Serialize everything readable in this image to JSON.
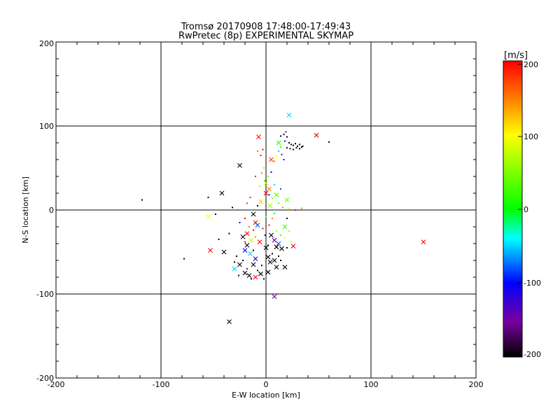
{
  "chart_data": {
    "type": "scatter",
    "title": "Tromsø 20170908 17:48:00-17:49:43",
    "subtitle": "RwPretec (8p) EXPERIMENTAL SKYMAP",
    "xlabel": "E-W location [km]",
    "ylabel": "N-S location [km]",
    "xlim": [
      -200,
      200
    ],
    "ylim": [
      -200,
      200
    ],
    "x_ticks": [
      "-200",
      "-100",
      "0",
      "100",
      "200"
    ],
    "y_ticks": [
      "-200",
      "-100",
      "0",
      "100",
      "200"
    ],
    "grid": true,
    "colorbar": {
      "label": "[m/s]",
      "range": [
        -200,
        200
      ],
      "ticks": [
        "200",
        "100",
        "0",
        "-100",
        "-200"
      ],
      "colormap": [
        "#000000",
        "#7a00a0",
        "#0000ff",
        "#00ffff",
        "#00ff00",
        "#ffff00",
        "#ff8000",
        "#ff0000"
      ]
    },
    "markers": [
      {
        "x": 22,
        "y": 113,
        "v": -50,
        "m": "x"
      },
      {
        "x": 48,
        "y": 89,
        "v": 200,
        "m": "x"
      },
      {
        "x": -7,
        "y": 87,
        "v": 200,
        "m": "x"
      },
      {
        "x": 12,
        "y": 80,
        "v": 20,
        "m": "x"
      },
      {
        "x": -25,
        "y": 53,
        "v": -200,
        "m": "x"
      },
      {
        "x": 5,
        "y": 60,
        "v": 180,
        "m": "x"
      },
      {
        "x": 0,
        "y": 32,
        "v": 80,
        "m": "x"
      },
      {
        "x": 3,
        "y": 25,
        "v": 150,
        "m": "x"
      },
      {
        "x": 0,
        "y": 20,
        "v": 200,
        "m": "x"
      },
      {
        "x": -42,
        "y": 20,
        "v": -200,
        "m": "x"
      },
      {
        "x": 10,
        "y": 18,
        "v": 30,
        "m": "x"
      },
      {
        "x": 20,
        "y": 12,
        "v": 40,
        "m": "x"
      },
      {
        "x": -5,
        "y": 10,
        "v": 120,
        "m": "x"
      },
      {
        "x": 4,
        "y": 5,
        "v": 60,
        "m": "x"
      },
      {
        "x": -12,
        "y": -5,
        "v": -200,
        "m": "x"
      },
      {
        "x": -55,
        "y": -8,
        "v": 100,
        "m": "x"
      },
      {
        "x": -10,
        "y": -15,
        "v": 200,
        "m": "x"
      },
      {
        "x": -8,
        "y": -18,
        "v": -80,
        "m": "x"
      },
      {
        "x": -18,
        "y": -28,
        "v": 200,
        "m": "x"
      },
      {
        "x": -22,
        "y": -32,
        "v": -200,
        "m": "x"
      },
      {
        "x": 5,
        "y": -30,
        "v": -200,
        "m": "x"
      },
      {
        "x": 8,
        "y": -36,
        "v": -150,
        "m": "x"
      },
      {
        "x": 18,
        "y": -20,
        "v": 20,
        "m": "x"
      },
      {
        "x": -18,
        "y": -42,
        "v": -200,
        "m": "x"
      },
      {
        "x": -20,
        "y": -48,
        "v": -100,
        "m": "x"
      },
      {
        "x": -15,
        "y": -52,
        "v": -50,
        "m": "x"
      },
      {
        "x": 10,
        "y": -44,
        "v": -200,
        "m": "x"
      },
      {
        "x": 15,
        "y": -46,
        "v": -200,
        "m": "x"
      },
      {
        "x": 26,
        "y": -43,
        "v": 200,
        "m": "x"
      },
      {
        "x": -40,
        "y": -50,
        "v": -200,
        "m": "x"
      },
      {
        "x": -53,
        "y": -48,
        "v": 200,
        "m": "x"
      },
      {
        "x": -10,
        "y": -58,
        "v": -100,
        "m": "x"
      },
      {
        "x": 2,
        "y": -56,
        "v": -200,
        "m": "x"
      },
      {
        "x": 4,
        "y": -62,
        "v": -200,
        "m": "x"
      },
      {
        "x": 8,
        "y": -60,
        "v": -200,
        "m": "x"
      },
      {
        "x": -12,
        "y": -65,
        "v": -200,
        "m": "x"
      },
      {
        "x": -25,
        "y": -65,
        "v": -200,
        "m": "x"
      },
      {
        "x": -30,
        "y": -70,
        "v": -50,
        "m": "x"
      },
      {
        "x": 10,
        "y": -68,
        "v": -200,
        "m": "x"
      },
      {
        "x": 18,
        "y": -68,
        "v": -200,
        "m": "x"
      },
      {
        "x": -20,
        "y": -75,
        "v": -200,
        "m": "x"
      },
      {
        "x": -16,
        "y": -78,
        "v": -200,
        "m": "x"
      },
      {
        "x": -10,
        "y": -80,
        "v": 200,
        "m": "x"
      },
      {
        "x": -5,
        "y": -76,
        "v": -200,
        "m": "x"
      },
      {
        "x": 2,
        "y": -74,
        "v": -200,
        "m": "x"
      },
      {
        "x": 150,
        "y": -38,
        "v": 200,
        "m": "x"
      },
      {
        "x": 8,
        "y": -103,
        "v": -150,
        "m": "x"
      },
      {
        "x": -35,
        "y": -133,
        "v": -200,
        "m": "x"
      },
      {
        "x": 0,
        "y": -45,
        "v": -200,
        "m": "x"
      },
      {
        "x": -6,
        "y": -38,
        "v": 200,
        "m": "x"
      },
      {
        "x": 12,
        "y": -40,
        "v": -80,
        "m": "x"
      },
      {
        "x": -14,
        "y": -36,
        "v": 80,
        "m": "x"
      },
      {
        "x": 14,
        "y": 88,
        "v": -200,
        "m": "d"
      },
      {
        "x": 17,
        "y": 90,
        "v": -200,
        "m": "d"
      },
      {
        "x": 19,
        "y": 93,
        "v": -150,
        "m": "d"
      },
      {
        "x": 20,
        "y": 87,
        "v": -200,
        "m": "d"
      },
      {
        "x": 22,
        "y": 80,
        "v": -200,
        "m": "d"
      },
      {
        "x": 24,
        "y": 78,
        "v": -200,
        "m": "d"
      },
      {
        "x": 26,
        "y": 77,
        "v": -200,
        "m": "d"
      },
      {
        "x": 28,
        "y": 79,
        "v": -200,
        "m": "d"
      },
      {
        "x": 30,
        "y": 76,
        "v": -200,
        "m": "d"
      },
      {
        "x": 32,
        "y": 78,
        "v": -200,
        "m": "d"
      },
      {
        "x": 34,
        "y": 75,
        "v": -200,
        "m": "d"
      },
      {
        "x": 20,
        "y": 74,
        "v": -200,
        "m": "d"
      },
      {
        "x": 23,
        "y": 73,
        "v": -200,
        "m": "d"
      },
      {
        "x": 26,
        "y": 72,
        "v": -200,
        "m": "d"
      },
      {
        "x": 29,
        "y": 74,
        "v": -200,
        "m": "d"
      },
      {
        "x": 32,
        "y": 73,
        "v": -200,
        "m": "d"
      },
      {
        "x": 35,
        "y": 76,
        "v": -200,
        "m": "d"
      },
      {
        "x": 60,
        "y": 81,
        "v": -200,
        "m": "d"
      },
      {
        "x": 18,
        "y": 82,
        "v": -100,
        "m": "d"
      },
      {
        "x": 14,
        "y": 75,
        "v": 20,
        "m": "d"
      },
      {
        "x": 12,
        "y": 70,
        "v": -50,
        "m": "d"
      },
      {
        "x": 10,
        "y": 64,
        "v": 100,
        "m": "d"
      },
      {
        "x": 15,
        "y": 66,
        "v": -150,
        "m": "d"
      },
      {
        "x": 17,
        "y": 60,
        "v": -100,
        "m": "d"
      },
      {
        "x": 8,
        "y": 58,
        "v": 150,
        "m": "d"
      },
      {
        "x": -5,
        "y": 65,
        "v": 200,
        "m": "d"
      },
      {
        "x": -3,
        "y": 72,
        "v": 200,
        "m": "d"
      },
      {
        "x": -8,
        "y": 70,
        "v": 150,
        "m": "d"
      },
      {
        "x": -2,
        "y": 50,
        "v": 60,
        "m": "d"
      },
      {
        "x": -4,
        "y": 44,
        "v": 150,
        "m": "d"
      },
      {
        "x": 2,
        "y": 40,
        "v": 30,
        "m": "d"
      },
      {
        "x": -10,
        "y": 40,
        "v": 200,
        "m": "d"
      },
      {
        "x": 5,
        "y": 45,
        "v": -100,
        "m": "d"
      },
      {
        "x": -1,
        "y": 35,
        "v": 0,
        "m": "d"
      },
      {
        "x": 8,
        "y": 30,
        "v": -50,
        "m": "d"
      },
      {
        "x": 14,
        "y": 25,
        "v": -80,
        "m": "d"
      },
      {
        "x": -6,
        "y": 28,
        "v": 120,
        "m": "d"
      },
      {
        "x": 3,
        "y": 18,
        "v": -100,
        "m": "d"
      },
      {
        "x": 6,
        "y": 14,
        "v": 40,
        "m": "d"
      },
      {
        "x": -15,
        "y": 15,
        "v": 200,
        "m": "d"
      },
      {
        "x": -18,
        "y": 8,
        "v": 180,
        "m": "d"
      },
      {
        "x": -8,
        "y": 5,
        "v": -200,
        "m": "d"
      },
      {
        "x": 12,
        "y": 8,
        "v": 20,
        "m": "d"
      },
      {
        "x": 16,
        "y": 3,
        "v": 150,
        "m": "d"
      },
      {
        "x": 22,
        "y": 2,
        "v": 100,
        "m": "d"
      },
      {
        "x": 28,
        "y": 0,
        "v": 200,
        "m": "d"
      },
      {
        "x": 34,
        "y": 2,
        "v": 150,
        "m": "d"
      },
      {
        "x": -32,
        "y": 3,
        "v": -200,
        "m": "d"
      },
      {
        "x": -55,
        "y": 15,
        "v": -200,
        "m": "d"
      },
      {
        "x": -48,
        "y": -5,
        "v": -200,
        "m": "d"
      },
      {
        "x": -118,
        "y": 12,
        "v": -200,
        "m": "d"
      },
      {
        "x": -78,
        "y": -58,
        "v": -200,
        "m": "d"
      },
      {
        "x": -45,
        "y": -35,
        "v": -200,
        "m": "d"
      },
      {
        "x": -35,
        "y": -28,
        "v": -200,
        "m": "d"
      },
      {
        "x": -25,
        "y": -15,
        "v": -100,
        "m": "d"
      },
      {
        "x": -20,
        "y": -10,
        "v": 200,
        "m": "d"
      },
      {
        "x": -16,
        "y": -20,
        "v": 150,
        "m": "d"
      },
      {
        "x": -12,
        "y": -24,
        "v": 200,
        "m": "d"
      },
      {
        "x": -6,
        "y": -12,
        "v": 100,
        "m": "d"
      },
      {
        "x": -3,
        "y": -22,
        "v": 200,
        "m": "d"
      },
      {
        "x": -1,
        "y": -30,
        "v": -150,
        "m": "d"
      },
      {
        "x": 3,
        "y": -18,
        "v": 200,
        "m": "d"
      },
      {
        "x": 6,
        "y": -10,
        "v": 150,
        "m": "d"
      },
      {
        "x": 10,
        "y": -25,
        "v": 60,
        "m": "d"
      },
      {
        "x": 14,
        "y": -30,
        "v": 20,
        "m": "d"
      },
      {
        "x": 18,
        "y": -33,
        "v": 100,
        "m": "d"
      },
      {
        "x": 20,
        "y": -10,
        "v": -200,
        "m": "d"
      },
      {
        "x": 22,
        "y": -25,
        "v": 120,
        "m": "d"
      },
      {
        "x": 24,
        "y": -38,
        "v": 80,
        "m": "d"
      },
      {
        "x": 20,
        "y": -45,
        "v": -200,
        "m": "d"
      },
      {
        "x": -28,
        "y": -55,
        "v": -200,
        "m": "d"
      },
      {
        "x": -22,
        "y": -60,
        "v": -200,
        "m": "d"
      },
      {
        "x": -18,
        "y": -70,
        "v": -150,
        "m": "d"
      },
      {
        "x": -14,
        "y": -82,
        "v": -200,
        "m": "d"
      },
      {
        "x": -8,
        "y": -72,
        "v": -200,
        "m": "d"
      },
      {
        "x": -4,
        "y": -66,
        "v": -200,
        "m": "d"
      },
      {
        "x": 6,
        "y": -52,
        "v": -200,
        "m": "d"
      },
      {
        "x": 12,
        "y": -55,
        "v": -200,
        "m": "d"
      },
      {
        "x": 14,
        "y": -60,
        "v": -200,
        "m": "d"
      },
      {
        "x": -2,
        "y": -82,
        "v": -200,
        "m": "d"
      },
      {
        "x": -26,
        "y": -78,
        "v": -200,
        "m": "d"
      },
      {
        "x": -30,
        "y": -62,
        "v": -200,
        "m": "d"
      },
      {
        "x": -12,
        "y": -48,
        "v": -200,
        "m": "d"
      },
      {
        "x": 2,
        "y": -42,
        "v": -200,
        "m": "d"
      },
      {
        "x": -20,
        "y": -38,
        "v": 200,
        "m": "d"
      },
      {
        "x": -10,
        "y": -32,
        "v": 150,
        "m": "d"
      },
      {
        "x": 0,
        "y": -8,
        "v": 60,
        "m": "d"
      },
      {
        "x": 8,
        "y": -4,
        "v": 0,
        "m": "d"
      },
      {
        "x": -14,
        "y": 0,
        "v": -50,
        "m": "d"
      }
    ]
  }
}
